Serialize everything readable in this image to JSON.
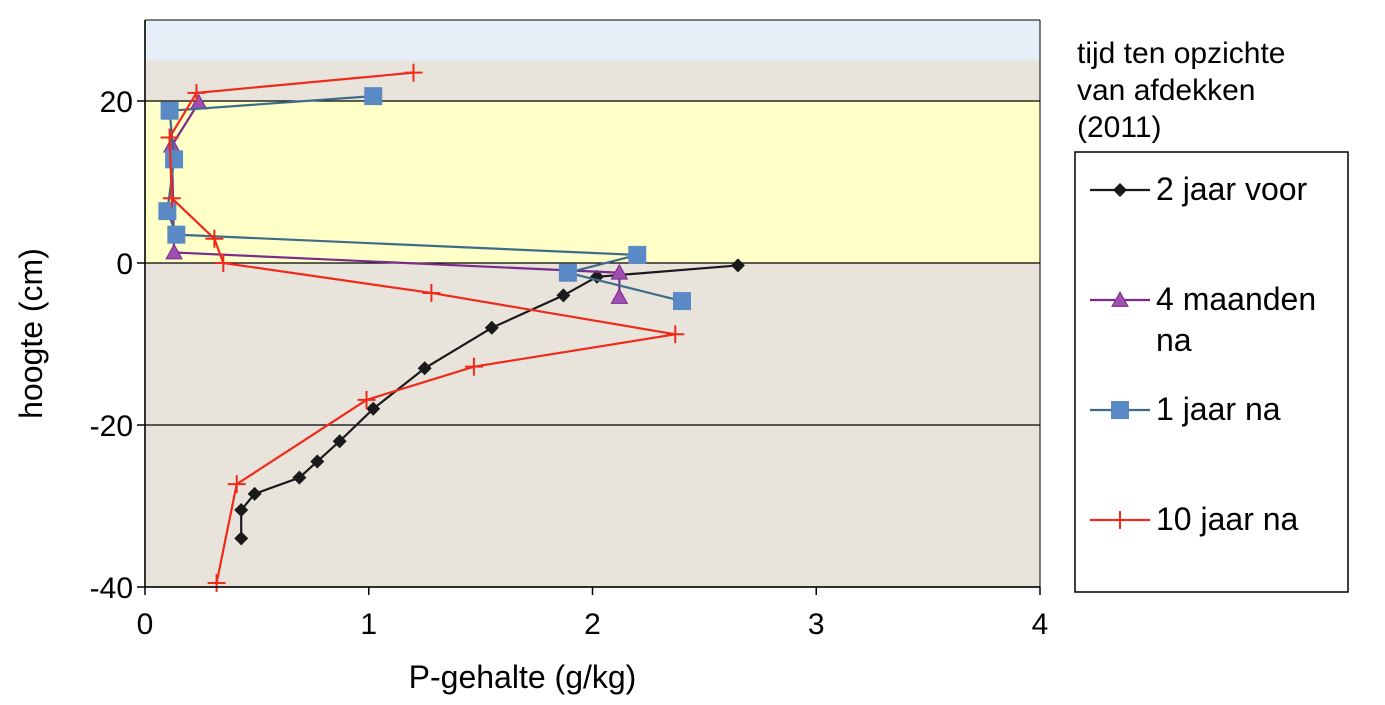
{
  "chart_data": {
    "type": "line",
    "xlabel": "P-gehalte (g/kg)",
    "ylabel": "hoogte (cm)",
    "xlim": [
      0,
      4
    ],
    "ylim": [
      -40,
      30
    ],
    "x_ticks": [
      "0",
      "1",
      "2",
      "3",
      "4"
    ],
    "y_ticks": [
      "-40",
      "-20",
      "0",
      "20"
    ],
    "horizontal_gridlines_at": [
      -40,
      -20,
      0,
      20
    ],
    "background_bands": [
      {
        "from": 25,
        "to": 30,
        "color": "#e6eef8"
      },
      {
        "from": 0,
        "to": 20,
        "color": "#ffffc8"
      }
    ],
    "plot_background": "#e8e4db",
    "legend_title_lines": [
      "tijd ten opzichte",
      "van afdekken",
      "(2011)"
    ],
    "legend_placement": "right",
    "series": [
      {
        "name": "2 jaar voor",
        "label_lines": [
          "2 jaar voor"
        ],
        "color": "#1a1a1a",
        "marker": "diamond",
        "points": [
          [
            2.65,
            -0.3
          ],
          [
            2.02,
            -1.7
          ],
          [
            1.87,
            -4
          ],
          [
            1.55,
            -8
          ],
          [
            1.25,
            -13
          ],
          [
            1.02,
            -18
          ],
          [
            0.87,
            -22
          ],
          [
            0.77,
            -24.5
          ],
          [
            0.69,
            -26.5
          ],
          [
            0.49,
            -28.5
          ],
          [
            0.43,
            -30.5
          ],
          [
            0.43,
            -34
          ]
        ]
      },
      {
        "name": "4 maanden na",
        "label_lines": [
          "4 maanden",
          "na"
        ],
        "color": "#7b2c8c",
        "marker": "triangle",
        "points": [
          [
            0.24,
            19.8
          ],
          [
            0.12,
            14.5
          ],
          [
            0.13,
            1.3
          ],
          [
            2.12,
            -1.2
          ],
          [
            2.12,
            -4.2
          ]
        ]
      },
      {
        "name": "1 jaar na",
        "label_lines": [
          "1 jaar na"
        ],
        "color": "#3d6c8a",
        "marker": "square",
        "marker_color": "#5a8ac6",
        "points": [
          [
            1.02,
            20.6
          ],
          [
            0.11,
            18.8
          ],
          [
            0.13,
            12.8
          ],
          [
            0.1,
            6.4
          ],
          [
            0.14,
            3.5
          ],
          [
            2.2,
            1.0
          ],
          [
            1.89,
            -1.2
          ],
          [
            2.4,
            -4.7
          ]
        ]
      },
      {
        "name": "10 jaar na",
        "label_lines": [
          "10 jaar na"
        ],
        "color": "#f02a1a",
        "marker": "plus",
        "points": [
          [
            1.2,
            23.5
          ],
          [
            0.23,
            21
          ],
          [
            0.11,
            15.5
          ],
          [
            0.12,
            8
          ],
          [
            0.31,
            3
          ],
          [
            0.35,
            0
          ],
          [
            1.28,
            -3.7
          ],
          [
            2.37,
            -8.8
          ],
          [
            1.47,
            -12.8
          ],
          [
            0.99,
            -16.9
          ],
          [
            0.41,
            -27.3
          ],
          [
            0.32,
            -39.5
          ]
        ]
      }
    ]
  }
}
